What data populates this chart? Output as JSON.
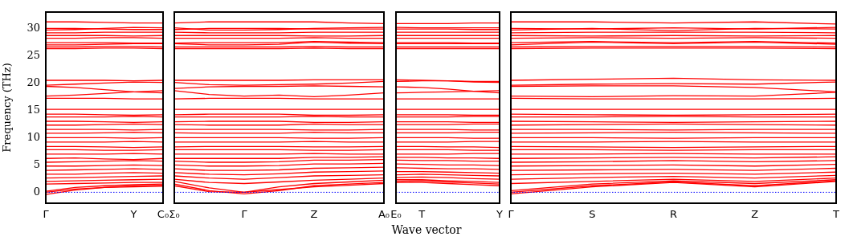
{
  "chart_data": [
    {
      "type": "line",
      "ylabel": "Frequency (THz)",
      "categories": [
        "Γ",
        null,
        null,
        "Y",
        "C₀"
      ],
      "ylim": [
        -2,
        33
      ],
      "yticks": [
        0,
        5,
        10,
        15,
        20,
        25,
        30
      ],
      "marker": "none",
      "line_style": "solid",
      "ref_lines": [
        {
          "axis": "y",
          "value": 0,
          "color": "#0000ff",
          "line_style": "dotted"
        }
      ],
      "series": [
        {
          "color": "#ff0000",
          "values": [
            0,
            0.6,
            0.9,
            1.0,
            1.1
          ]
        },
        {
          "color": "#ff0000",
          "values": [
            -0.4,
            0.4,
            0.9,
            1.2,
            1.3
          ]
        },
        {
          "color": "#ff0000",
          "values": [
            0.2,
            0.9,
            1.2,
            1.4,
            1.5
          ]
        },
        {
          "color": "#ff0000",
          "values": [
            1.5,
            1.6,
            1.7,
            1.8,
            1.8
          ]
        },
        {
          "color": "#ff0000",
          "values": [
            2.0,
            2.1,
            2.2,
            2.3,
            2.4
          ]
        },
        {
          "color": "#ff0000",
          "values": [
            2.6,
            2.7,
            2.8,
            2.9,
            3.0
          ]
        },
        {
          "color": "#ff0000",
          "values": [
            3.3,
            3.3,
            3.5,
            3.6,
            3.5
          ]
        },
        {
          "color": "#ff0000",
          "values": [
            4.0,
            4.1,
            4.2,
            4.3,
            4.2
          ]
        },
        {
          "color": "#ff0000",
          "values": [
            4.8,
            4.8,
            4.9,
            5.0,
            4.9
          ]
        },
        {
          "color": "#ff0000",
          "values": [
            5.5,
            5.6,
            5.7,
            5.8,
            5.7
          ]
        },
        {
          "color": "#ff0000",
          "values": [
            6.2,
            6.3,
            6.1,
            6.0,
            6.2
          ]
        },
        {
          "color": "#ff0000",
          "values": [
            7.0,
            7.0,
            7.0,
            7.1,
            7.0
          ]
        },
        {
          "color": "#ff0000",
          "values": [
            7.8,
            7.8,
            7.7,
            7.7,
            7.8
          ]
        },
        {
          "color": "#ff0000",
          "values": [
            8.4,
            8.4,
            8.3,
            8.2,
            8.3
          ]
        },
        {
          "color": "#ff0000",
          "values": [
            9.2,
            9.2,
            9.2,
            9.3,
            9.2
          ]
        },
        {
          "color": "#ff0000",
          "values": [
            10.0,
            10.0,
            10.0,
            9.9,
            10.0
          ]
        },
        {
          "color": "#ff0000",
          "values": [
            10.8,
            10.8,
            10.9,
            11.0,
            10.9
          ]
        },
        {
          "color": "#ff0000",
          "values": [
            11.5,
            11.5,
            11.5,
            11.4,
            11.5
          ]
        },
        {
          "color": "#ff0000",
          "values": [
            12.3,
            12.3,
            12.4,
            12.5,
            12.4
          ]
        },
        {
          "color": "#ff0000",
          "values": [
            13.0,
            13.0,
            12.9,
            12.8,
            12.9
          ]
        },
        {
          "color": "#ff0000",
          "values": [
            13.8,
            13.8,
            13.8,
            13.9,
            13.8
          ]
        },
        {
          "color": "#ff0000",
          "values": [
            14.3,
            14.3,
            14.2,
            14.1,
            14.2
          ]
        },
        {
          "color": "#ff0000",
          "values": [
            15.2,
            15.2,
            15.2,
            15.2,
            15.2
          ]
        },
        {
          "color": "#ff0000",
          "values": [
            17.2,
            17.2,
            17.2,
            17.1,
            17.1
          ]
        },
        {
          "color": "#ff0000",
          "values": [
            17.6,
            17.8,
            18.1,
            18.4,
            18.6
          ]
        },
        {
          "color": "#ff0000",
          "values": [
            19.4,
            19.2,
            18.8,
            18.4,
            18.2
          ]
        },
        {
          "color": "#ff0000",
          "values": [
            19.6,
            19.8,
            20.0,
            20.2,
            20.1
          ]
        },
        {
          "color": "#ff0000",
          "values": [
            20.5,
            20.5,
            20.5,
            20.4,
            20.5
          ]
        },
        {
          "color": "#ff0000",
          "values": [
            26.3,
            26.3,
            26.4,
            26.4,
            26.3
          ]
        },
        {
          "color": "#ff0000",
          "values": [
            26.6,
            26.6,
            26.7,
            26.7,
            26.6
          ]
        },
        {
          "color": "#ff0000",
          "values": [
            27.0,
            27.0,
            27.1,
            27.2,
            27.2
          ]
        },
        {
          "color": "#ff0000",
          "values": [
            27.4,
            27.4,
            27.4,
            27.3,
            27.3
          ]
        },
        {
          "color": "#ff0000",
          "values": [
            28.2,
            28.2,
            28.3,
            28.3,
            28.2
          ]
        },
        {
          "color": "#ff0000",
          "values": [
            28.7,
            28.7,
            28.7,
            28.6,
            28.7
          ]
        },
        {
          "color": "#ff0000",
          "values": [
            29.2,
            29.2,
            29.3,
            29.3,
            29.3
          ]
        },
        {
          "color": "#ff0000",
          "values": [
            29.7,
            29.8,
            30.0,
            30.2,
            30.1
          ]
        },
        {
          "color": "#ff0000",
          "values": [
            30.0,
            30.0,
            29.9,
            29.8,
            29.8
          ]
        },
        {
          "color": "#ff0000",
          "values": [
            31.2,
            31.2,
            31.1,
            31.0,
            31.0
          ]
        }
      ]
    },
    {
      "type": "line",
      "categories": [
        "Σ₀",
        null,
        "Γ",
        null,
        "Z",
        null,
        "A₀"
      ],
      "ylim": [
        -2,
        33
      ],
      "yticks": [
        0,
        5,
        10,
        15,
        20,
        25,
        30
      ],
      "tick_labels": "x",
      "marker": "none",
      "line_style": "solid",
      "ref_lines": [
        {
          "axis": "y",
          "value": 0,
          "color": "#0000ff",
          "line_style": "dotted"
        }
      ],
      "series": [
        {
          "color": "#ff0000",
          "values": [
            1.5,
            0.3,
            -0.3,
            0.3,
            1.2,
            1.5,
            1.8
          ]
        },
        {
          "color": "#ff0000",
          "values": [
            1.2,
            0.1,
            0,
            0.5,
            1.0,
            1.3,
            1.6
          ]
        },
        {
          "color": "#ff0000",
          "values": [
            2.0,
            0.8,
            0,
            1.0,
            1.6,
            1.9,
            2.2
          ]
        },
        {
          "color": "#ff0000",
          "values": [
            2.4,
            1.8,
            1.6,
            1.9,
            2.2,
            2.4,
            2.6
          ]
        },
        {
          "color": "#ff0000",
          "values": [
            3.0,
            2.6,
            2.4,
            2.7,
            3.0,
            3.1,
            3.2
          ]
        },
        {
          "color": "#ff0000",
          "values": [
            3.6,
            3.3,
            3.2,
            3.4,
            3.7,
            3.8,
            3.9
          ]
        },
        {
          "color": "#ff0000",
          "values": [
            4.3,
            4.0,
            4.0,
            4.1,
            4.4,
            4.5,
            4.6
          ]
        },
        {
          "color": "#ff0000",
          "values": [
            5.0,
            4.8,
            4.8,
            4.9,
            5.2,
            5.2,
            5.3
          ]
        },
        {
          "color": "#ff0000",
          "values": [
            5.7,
            5.5,
            5.5,
            5.6,
            5.9,
            5.9,
            6.0
          ]
        },
        {
          "color": "#ff0000",
          "values": [
            6.2,
            6.2,
            6.2,
            6.2,
            6.4,
            6.4,
            6.5
          ]
        },
        {
          "color": "#ff0000",
          "values": [
            7.0,
            7.0,
            7.0,
            7.0,
            7.1,
            7.0,
            7.0
          ]
        },
        {
          "color": "#ff0000",
          "values": [
            7.8,
            7.8,
            7.8,
            7.8,
            7.7,
            7.7,
            7.8
          ]
        },
        {
          "color": "#ff0000",
          "values": [
            8.3,
            8.4,
            8.4,
            8.4,
            8.3,
            8.3,
            8.4
          ]
        },
        {
          "color": "#ff0000",
          "values": [
            9.2,
            9.2,
            9.2,
            9.2,
            9.3,
            9.2,
            9.2
          ]
        },
        {
          "color": "#ff0000",
          "values": [
            10.0,
            10.0,
            10.0,
            10.0,
            9.9,
            9.9,
            10.0
          ]
        },
        {
          "color": "#ff0000",
          "values": [
            10.9,
            10.8,
            10.8,
            10.8,
            11.0,
            10.9,
            10.9
          ]
        },
        {
          "color": "#ff0000",
          "values": [
            11.5,
            11.5,
            11.5,
            11.5,
            11.4,
            11.4,
            11.5
          ]
        },
        {
          "color": "#ff0000",
          "values": [
            12.4,
            12.3,
            12.3,
            12.3,
            12.5,
            12.4,
            12.4
          ]
        },
        {
          "color": "#ff0000",
          "values": [
            12.9,
            13.0,
            13.0,
            13.0,
            12.8,
            12.8,
            12.9
          ]
        },
        {
          "color": "#ff0000",
          "values": [
            13.8,
            13.8,
            13.8,
            13.8,
            13.9,
            13.8,
            13.8
          ]
        },
        {
          "color": "#ff0000",
          "values": [
            14.2,
            14.3,
            14.3,
            14.3,
            14.1,
            14.1,
            14.2
          ]
        },
        {
          "color": "#ff0000",
          "values": [
            15.2,
            15.2,
            15.2,
            15.2,
            15.2,
            15.2,
            15.2
          ]
        },
        {
          "color": "#ff0000",
          "values": [
            17.1,
            17.2,
            17.2,
            17.2,
            17.1,
            17.1,
            17.1
          ]
        },
        {
          "color": "#ff0000",
          "values": [
            18.6,
            17.9,
            17.6,
            17.8,
            17.5,
            17.8,
            18.2
          ]
        },
        {
          "color": "#ff0000",
          "values": [
            19.0,
            19.3,
            19.4,
            19.4,
            19.5,
            19.4,
            19.3
          ]
        },
        {
          "color": "#ff0000",
          "values": [
            20.1,
            19.7,
            19.6,
            19.7,
            19.8,
            20.0,
            20.3
          ]
        },
        {
          "color": "#ff0000",
          "values": [
            20.5,
            20.5,
            20.5,
            20.5,
            20.6,
            20.6,
            20.6
          ]
        },
        {
          "color": "#ff0000",
          "values": [
            26.3,
            26.3,
            26.3,
            26.3,
            26.4,
            26.3,
            26.3
          ]
        },
        {
          "color": "#ff0000",
          "values": [
            26.6,
            26.6,
            26.6,
            26.6,
            26.7,
            26.6,
            26.6
          ]
        },
        {
          "color": "#ff0000",
          "values": [
            27.2,
            27.0,
            27.0,
            27.1,
            27.5,
            27.3,
            27.2
          ]
        },
        {
          "color": "#ff0000",
          "values": [
            27.3,
            27.4,
            27.4,
            27.4,
            27.6,
            27.5,
            27.4
          ]
        },
        {
          "color": "#ff0000",
          "values": [
            28.2,
            28.2,
            28.2,
            28.2,
            28.3,
            28.2,
            28.2
          ]
        },
        {
          "color": "#ff0000",
          "values": [
            28.7,
            28.7,
            28.7,
            28.7,
            28.6,
            28.6,
            28.7
          ]
        },
        {
          "color": "#ff0000",
          "values": [
            29.3,
            29.2,
            29.2,
            29.2,
            29.3,
            29.3,
            29.3
          ]
        },
        {
          "color": "#ff0000",
          "values": [
            30.1,
            29.7,
            29.7,
            29.8,
            30.0,
            30.1,
            30.2
          ]
        },
        {
          "color": "#ff0000",
          "values": [
            29.8,
            30.0,
            30.0,
            30.0,
            29.9,
            29.9,
            29.9
          ]
        },
        {
          "color": "#ff0000",
          "values": [
            31.0,
            31.2,
            31.2,
            31.2,
            31.2,
            31.0,
            30.9
          ]
        }
      ]
    },
    {
      "type": "line",
      "categories": [
        "E₀",
        "T",
        null,
        null,
        "Y"
      ],
      "ylim": [
        -2,
        33
      ],
      "yticks": [
        0,
        5,
        10,
        15,
        20,
        25,
        30
      ],
      "tick_labels": "x",
      "marker": "none",
      "line_style": "solid",
      "xlabel": "Wave vector",
      "ref_lines": [
        {
          "axis": "y",
          "value": 0,
          "color": "#0000ff",
          "line_style": "dotted"
        }
      ],
      "series": [
        {
          "color": "#ff0000",
          "values": [
            1.8,
            1.8,
            1.6,
            1.4,
            1.2
          ]
        },
        {
          "color": "#ff0000",
          "values": [
            2.0,
            2.1,
            1.9,
            1.7,
            1.5
          ]
        },
        {
          "color": "#ff0000",
          "values": [
            2.3,
            2.3,
            2.1,
            2.0,
            1.8
          ]
        },
        {
          "color": "#ff0000",
          "values": [
            2.7,
            2.8,
            2.7,
            2.5,
            2.4
          ]
        },
        {
          "color": "#ff0000",
          "values": [
            3.2,
            3.3,
            3.2,
            3.1,
            3.0
          ]
        },
        {
          "color": "#ff0000",
          "values": [
            3.8,
            3.8,
            3.7,
            3.6,
            3.5
          ]
        },
        {
          "color": "#ff0000",
          "values": [
            4.5,
            4.4,
            4.3,
            4.3,
            4.2
          ]
        },
        {
          "color": "#ff0000",
          "values": [
            5.2,
            5.1,
            5.0,
            5.0,
            4.9
          ]
        },
        {
          "color": "#ff0000",
          "values": [
            5.9,
            5.8,
            5.8,
            5.7,
            5.7
          ]
        },
        {
          "color": "#ff0000",
          "values": [
            6.4,
            6.4,
            6.3,
            6.3,
            6.2
          ]
        },
        {
          "color": "#ff0000",
          "values": [
            7.0,
            7.0,
            7.0,
            7.1,
            7.1
          ]
        },
        {
          "color": "#ff0000",
          "values": [
            7.8,
            7.8,
            7.8,
            7.7,
            7.7
          ]
        },
        {
          "color": "#ff0000",
          "values": [
            8.4,
            8.4,
            8.3,
            8.3,
            8.2
          ]
        },
        {
          "color": "#ff0000",
          "values": [
            9.2,
            9.2,
            9.2,
            9.3,
            9.3
          ]
        },
        {
          "color": "#ff0000",
          "values": [
            10.0,
            10.0,
            10.0,
            9.9,
            9.9
          ]
        },
        {
          "color": "#ff0000",
          "values": [
            10.9,
            10.9,
            10.9,
            11.0,
            11.0
          ]
        },
        {
          "color": "#ff0000",
          "values": [
            11.5,
            11.5,
            11.5,
            11.4,
            11.4
          ]
        },
        {
          "color": "#ff0000",
          "values": [
            12.4,
            12.4,
            12.4,
            12.5,
            12.5
          ]
        },
        {
          "color": "#ff0000",
          "values": [
            12.9,
            12.9,
            12.9,
            12.8,
            12.8
          ]
        },
        {
          "color": "#ff0000",
          "values": [
            13.8,
            13.8,
            13.8,
            13.9,
            13.9
          ]
        },
        {
          "color": "#ff0000",
          "values": [
            14.2,
            14.2,
            14.2,
            14.1,
            14.1
          ]
        },
        {
          "color": "#ff0000",
          "values": [
            15.2,
            15.2,
            15.2,
            15.2,
            15.2
          ]
        },
        {
          "color": "#ff0000",
          "values": [
            17.1,
            17.1,
            17.1,
            17.1,
            17.1
          ]
        },
        {
          "color": "#ff0000",
          "values": [
            18.2,
            18.3,
            18.4,
            18.5,
            18.6
          ]
        },
        {
          "color": "#ff0000",
          "values": [
            19.3,
            19.2,
            18.9,
            18.5,
            18.2
          ]
        },
        {
          "color": "#ff0000",
          "values": [
            20.6,
            20.5,
            20.4,
            20.2,
            20.1
          ]
        },
        {
          "color": "#ff0000",
          "values": [
            20.3,
            20.4,
            20.4,
            20.3,
            20.3
          ]
        },
        {
          "color": "#ff0000",
          "values": [
            26.3,
            26.3,
            26.3,
            26.3,
            26.3
          ]
        },
        {
          "color": "#ff0000",
          "values": [
            26.6,
            26.6,
            26.6,
            26.6,
            26.6
          ]
        },
        {
          "color": "#ff0000",
          "values": [
            27.2,
            27.2,
            27.2,
            27.2,
            27.2
          ]
        },
        {
          "color": "#ff0000",
          "values": [
            27.4,
            27.4,
            27.4,
            27.3,
            27.3
          ]
        },
        {
          "color": "#ff0000",
          "values": [
            28.2,
            28.2,
            28.2,
            28.2,
            28.2
          ]
        },
        {
          "color": "#ff0000",
          "values": [
            28.7,
            28.7,
            28.7,
            28.7,
            28.7
          ]
        },
        {
          "color": "#ff0000",
          "values": [
            29.3,
            29.3,
            29.3,
            29.3,
            29.3
          ]
        },
        {
          "color": "#ff0000",
          "values": [
            30.2,
            30.1,
            30.1,
            30.1,
            30.1
          ]
        },
        {
          "color": "#ff0000",
          "values": [
            29.9,
            29.9,
            29.9,
            29.8,
            29.8
          ]
        },
        {
          "color": "#ff0000",
          "values": [
            30.9,
            30.9,
            30.9,
            31.0,
            31.0
          ]
        }
      ]
    },
    {
      "type": "line",
      "categories": [
        "Γ",
        "S",
        "R",
        "Z",
        "T"
      ],
      "ylim": [
        -2,
        33
      ],
      "yticks": [
        0,
        5,
        10,
        15,
        20,
        25,
        30
      ],
      "tick_labels": "x",
      "marker": "none",
      "line_style": "solid",
      "ref_lines": [
        {
          "axis": "y",
          "value": 0,
          "color": "#0000ff",
          "line_style": "dotted"
        }
      ],
      "series": [
        {
          "color": "#ff0000",
          "values": [
            -0.3,
            1.0,
            1.8,
            1.0,
            2.0
          ]
        },
        {
          "color": "#ff0000",
          "values": [
            0,
            1.2,
            1.9,
            1.2,
            2.1
          ]
        },
        {
          "color": "#ff0000",
          "values": [
            0.3,
            1.5,
            2.1,
            1.6,
            2.3
          ]
        },
        {
          "color": "#ff0000",
          "values": [
            1.6,
            2.0,
            2.4,
            2.0,
            2.6
          ]
        },
        {
          "color": "#ff0000",
          "values": [
            2.4,
            2.7,
            2.9,
            2.6,
            3.1
          ]
        },
        {
          "color": "#ff0000",
          "values": [
            3.2,
            3.4,
            3.5,
            3.3,
            3.7
          ]
        },
        {
          "color": "#ff0000",
          "values": [
            4.0,
            4.1,
            4.2,
            4.0,
            4.4
          ]
        },
        {
          "color": "#ff0000",
          "values": [
            4.8,
            4.9,
            5.0,
            4.8,
            5.1
          ]
        },
        {
          "color": "#ff0000",
          "values": [
            5.5,
            5.6,
            5.8,
            5.6,
            5.8
          ]
        },
        {
          "color": "#ff0000",
          "values": [
            6.2,
            6.3,
            6.4,
            6.3,
            6.5
          ]
        },
        {
          "color": "#ff0000",
          "values": [
            7.0,
            7.0,
            7.1,
            7.0,
            7.0
          ]
        },
        {
          "color": "#ff0000",
          "values": [
            7.8,
            7.8,
            7.7,
            7.8,
            7.8
          ]
        },
        {
          "color": "#ff0000",
          "values": [
            8.4,
            8.3,
            8.2,
            8.3,
            8.4
          ]
        },
        {
          "color": "#ff0000",
          "values": [
            9.2,
            9.2,
            9.3,
            9.2,
            9.2
          ]
        },
        {
          "color": "#ff0000",
          "values": [
            10.0,
            10.0,
            9.9,
            10.0,
            10.0
          ]
        },
        {
          "color": "#ff0000",
          "values": [
            10.8,
            10.9,
            11.0,
            10.9,
            10.8
          ]
        },
        {
          "color": "#ff0000",
          "values": [
            11.5,
            11.5,
            11.4,
            11.5,
            11.5
          ]
        },
        {
          "color": "#ff0000",
          "values": [
            12.3,
            12.4,
            12.5,
            12.4,
            12.3
          ]
        },
        {
          "color": "#ff0000",
          "values": [
            13.0,
            12.9,
            12.8,
            12.9,
            13.0
          ]
        },
        {
          "color": "#ff0000",
          "values": [
            13.8,
            13.8,
            13.9,
            13.8,
            13.8
          ]
        },
        {
          "color": "#ff0000",
          "values": [
            14.3,
            14.2,
            14.1,
            14.2,
            14.3
          ]
        },
        {
          "color": "#ff0000",
          "values": [
            15.2,
            15.2,
            15.2,
            15.2,
            15.2
          ]
        },
        {
          "color": "#ff0000",
          "values": [
            17.2,
            17.1,
            17.1,
            17.1,
            17.2
          ]
        },
        {
          "color": "#ff0000",
          "values": [
            17.6,
            17.5,
            17.7,
            17.6,
            18.3
          ]
        },
        {
          "color": "#ff0000",
          "values": [
            19.4,
            19.5,
            19.5,
            19.2,
            18.4
          ]
        },
        {
          "color": "#ff0000",
          "values": [
            19.6,
            19.8,
            19.9,
            19.8,
            20.2
          ]
        },
        {
          "color": "#ff0000",
          "values": [
            20.5,
            20.7,
            20.9,
            20.6,
            20.5
          ]
        },
        {
          "color": "#ff0000",
          "values": [
            26.3,
            26.4,
            26.4,
            26.4,
            26.3
          ]
        },
        {
          "color": "#ff0000",
          "values": [
            26.6,
            26.7,
            26.7,
            26.7,
            26.6
          ]
        },
        {
          "color": "#ff0000",
          "values": [
            27.0,
            27.5,
            27.2,
            27.5,
            27.1
          ]
        },
        {
          "color": "#ff0000",
          "values": [
            27.4,
            27.6,
            27.4,
            27.6,
            27.3
          ]
        },
        {
          "color": "#ff0000",
          "values": [
            28.2,
            28.3,
            28.2,
            28.3,
            28.2
          ]
        },
        {
          "color": "#ff0000",
          "values": [
            28.7,
            28.6,
            28.7,
            28.6,
            28.7
          ]
        },
        {
          "color": "#ff0000",
          "values": [
            29.2,
            29.3,
            29.3,
            29.3,
            29.2
          ]
        },
        {
          "color": "#ff0000",
          "values": [
            29.7,
            30.0,
            29.6,
            30.0,
            29.9
          ]
        },
        {
          "color": "#ff0000",
          "values": [
            30.0,
            29.9,
            30.1,
            29.9,
            30.2
          ]
        },
        {
          "color": "#ff0000",
          "values": [
            31.2,
            31.2,
            31.0,
            31.2,
            30.8
          ]
        }
      ]
    }
  ]
}
